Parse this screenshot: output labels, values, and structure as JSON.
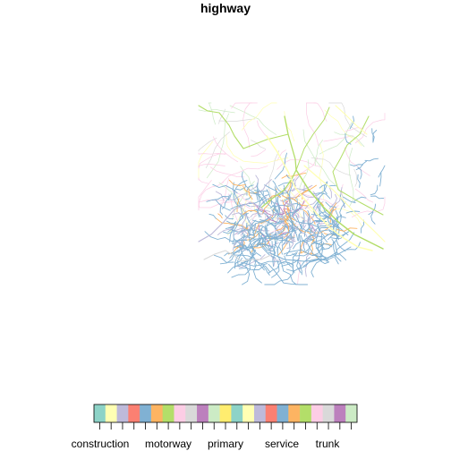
{
  "title": "highway",
  "legend": {
    "colors": [
      "#8dd3c7",
      "#ffffb3",
      "#bebada",
      "#fb8072",
      "#80b1d3",
      "#fdb462",
      "#b3de69",
      "#fccde5",
      "#d9d9d9",
      "#bc80bd",
      "#ccebc5",
      "#ffed6f",
      "#8dd3c7",
      "#ffffb3",
      "#bebada",
      "#fb8072",
      "#80b1d3",
      "#fdb462",
      "#b3de69",
      "#fccde5",
      "#d9d9d9",
      "#bc80bd",
      "#ccebc5"
    ],
    "labels": [
      "construction",
      "motorway",
      "primary",
      "service",
      "trunk"
    ]
  },
  "map_colors": {
    "residential": "#80b1d3",
    "primary": "#b3de69",
    "trunk": "#ffffb3",
    "secondary": "#fccde5",
    "footway": "#bebada",
    "tertiary": "#bc80bd",
    "service": "#fdb462",
    "path": "#d9d9d9",
    "track": "#ccebc5"
  }
}
